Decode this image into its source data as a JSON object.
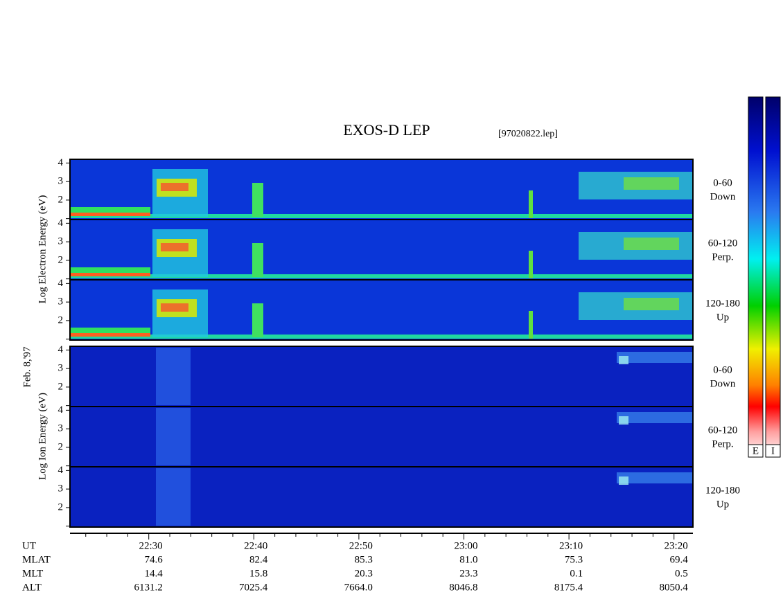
{
  "title": "EXOS-D LEP",
  "file": "[97020822.lep]",
  "y_labels": {
    "electron": "Log Electron Energy (eV)",
    "date": "Feb. 8,'97",
    "ion": "Log Ion Energy (eV)"
  },
  "panels": [
    {
      "species": "electron",
      "label": [
        "0-60",
        "Down"
      ]
    },
    {
      "species": "electron",
      "label": [
        "60-120",
        "Perp."
      ]
    },
    {
      "species": "electron",
      "label": [
        "120-180",
        "Up"
      ]
    },
    {
      "species": "ion",
      "label": [
        "0-60",
        "Down"
      ]
    },
    {
      "species": "ion",
      "label": [
        "60-120",
        "Perp."
      ]
    },
    {
      "species": "ion",
      "label": [
        "120-180",
        "Up"
      ]
    }
  ],
  "yaxis": {
    "ylim": [
      0.95,
      4.2
    ],
    "yticks": [
      2,
      3,
      4
    ],
    "minor_yticks": [
      1
    ]
  },
  "xaxis": {
    "xlim": [
      22.5,
      81.8
    ],
    "xticks": [
      {
        "value": 30,
        "label": "22:30"
      },
      {
        "value": 40,
        "label": "22:40"
      },
      {
        "value": 50,
        "label": "22:50"
      },
      {
        "value": 60,
        "label": "23:00"
      },
      {
        "value": 70,
        "label": "23:10"
      },
      {
        "value": 80,
        "label": "23:20"
      }
    ],
    "minor_xticks": [
      24,
      26,
      28,
      32,
      34,
      36,
      38,
      42,
      44,
      46,
      48,
      52,
      54,
      56,
      58,
      62,
      64,
      66,
      68,
      72,
      74,
      76,
      78
    ]
  },
  "ephemeris": {
    "labels": [
      "UT",
      "MLAT",
      "MLT",
      "ALT"
    ],
    "rows": [
      [
        "74.6",
        "82.4",
        "85.3",
        "81.0",
        "75.3",
        "69.4"
      ],
      [
        "14.4",
        "15.8",
        "20.3",
        "23.3",
        "0.1",
        "0.5"
      ],
      [
        "6131.2",
        "7025.4",
        "7664.0",
        "8046.8",
        "8175.4",
        "8050.4"
      ]
    ]
  },
  "colorbars": [
    "E",
    "I"
  ]
}
